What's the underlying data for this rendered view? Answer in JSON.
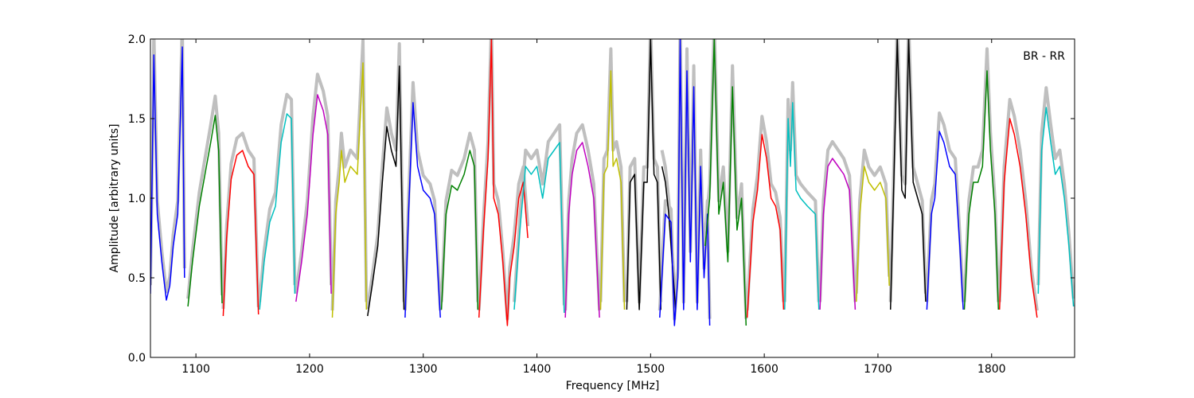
{
  "chart_data": {
    "type": "line",
    "title": "",
    "xlabel": "Frequency [MHz]",
    "ylabel": "Amplitude [arbitrary units]",
    "annotation": "BR - RR",
    "annotation_position": "top-right",
    "xlim": [
      1060,
      1873
    ],
    "ylim": [
      0.0,
      2.0
    ],
    "xticks": [
      1100,
      1200,
      1300,
      1400,
      1500,
      1600,
      1700,
      1800
    ],
    "yticks": [
      0.0,
      0.5,
      1.0,
      1.5,
      2.0
    ],
    "xtick_labels": [
      "1100",
      "1200",
      "1300",
      "1400",
      "1500",
      "1600",
      "1700",
      "1800"
    ],
    "ytick_labels": [
      "0.0",
      "0.5",
      "1.0",
      "1.5",
      "2.0"
    ],
    "grid": false,
    "background_series_color": "#bfbfbf",
    "series": [
      {
        "color": "#0000ff",
        "x": [
          1060,
          1063,
          1066,
          1070,
          1074,
          1077,
          1080,
          1084,
          1088,
          1090
        ],
        "y": [
          0.4,
          1.9,
          0.9,
          0.6,
          0.36,
          0.45,
          0.7,
          0.9,
          1.95,
          0.5
        ]
      },
      {
        "color": "#008000",
        "x": [
          1093,
          1097,
          1103,
          1108,
          1113,
          1117,
          1120,
          1123
        ],
        "y": [
          0.32,
          0.6,
          0.95,
          1.15,
          1.35,
          1.52,
          1.3,
          0.34
        ]
      },
      {
        "color": "#ff0000",
        "x": [
          1124,
          1127,
          1131,
          1136,
          1141,
          1146,
          1151,
          1155
        ],
        "y": [
          0.26,
          0.75,
          1.12,
          1.27,
          1.3,
          1.2,
          1.15,
          0.27
        ]
      },
      {
        "color": "#00bfbf",
        "x": [
          1156,
          1160,
          1165,
          1170,
          1175,
          1180,
          1184,
          1187
        ],
        "y": [
          0.3,
          0.6,
          0.85,
          0.95,
          1.35,
          1.53,
          1.5,
          0.4
        ]
      },
      {
        "color": "#bf00bf",
        "x": [
          1188,
          1193,
          1198,
          1203,
          1207,
          1212,
          1216,
          1219
        ],
        "y": [
          0.35,
          0.6,
          0.9,
          1.4,
          1.65,
          1.55,
          1.4,
          0.4
        ]
      },
      {
        "color": "#bfbf00",
        "x": [
          1220,
          1223,
          1226,
          1228,
          1231,
          1236,
          1242,
          1247,
          1250
        ],
        "y": [
          0.25,
          0.9,
          1.1,
          1.3,
          1.1,
          1.2,
          1.15,
          1.85,
          0.3
        ]
      },
      {
        "color": "#000000",
        "x": [
          1251,
          1255,
          1260,
          1264,
          1268,
          1272,
          1276,
          1279,
          1283
        ],
        "y": [
          0.26,
          0.45,
          0.7,
          1.1,
          1.45,
          1.3,
          1.2,
          1.83,
          0.3
        ]
      },
      {
        "color": "#0000ff",
        "x": [
          1284,
          1287,
          1291,
          1295,
          1300,
          1306,
          1310,
          1315
        ],
        "y": [
          0.25,
          0.9,
          1.6,
          1.2,
          1.05,
          1.0,
          0.9,
          0.25
        ]
      },
      {
        "color": "#008000",
        "x": [
          1316,
          1320,
          1325,
          1330,
          1336,
          1341,
          1345,
          1348
        ],
        "y": [
          0.3,
          0.9,
          1.08,
          1.05,
          1.15,
          1.3,
          1.2,
          0.3
        ]
      },
      {
        "color": "#ff0000",
        "x": [
          1349,
          1353,
          1357,
          1360,
          1362,
          1366,
          1370,
          1374,
          1376,
          1380,
          1384,
          1388,
          1392
        ],
        "y": [
          0.25,
          0.8,
          1.25,
          2.0,
          1.0,
          0.9,
          0.6,
          0.2,
          0.5,
          0.7,
          1.0,
          1.1,
          0.75
        ]
      },
      {
        "color": "#00bfbf",
        "x": [
          1380,
          1385,
          1390,
          1395,
          1400,
          1405,
          1410,
          1415,
          1420,
          1424
        ],
        "y": [
          0.3,
          0.8,
          1.2,
          1.15,
          1.2,
          1.0,
          1.25,
          1.3,
          1.35,
          0.28
        ]
      },
      {
        "color": "#bf00bf",
        "x": [
          1425,
          1428,
          1431,
          1435,
          1440,
          1445,
          1450,
          1455
        ],
        "y": [
          0.25,
          0.9,
          1.15,
          1.3,
          1.35,
          1.2,
          1.0,
          0.25
        ]
      },
      {
        "color": "#bfbf00",
        "x": [
          1456,
          1459,
          1462,
          1465,
          1467,
          1470,
          1474,
          1477
        ],
        "y": [
          0.3,
          1.15,
          1.2,
          1.8,
          1.2,
          1.25,
          1.1,
          0.3
        ]
      },
      {
        "color": "#000000",
        "x": [
          1479,
          1482,
          1486,
          1490,
          1494,
          1497,
          1500,
          1503,
          1506,
          1509
        ],
        "y": [
          0.3,
          1.1,
          1.15,
          0.3,
          1.1,
          1.1,
          2.0,
          1.15,
          1.1,
          0.3
        ]
      },
      {
        "color": "#000000",
        "x": [
          1510,
          1513,
          1516,
          1519,
          1522
        ],
        "y": [
          1.2,
          1.1,
          0.9,
          0.6,
          0.3
        ]
      },
      {
        "color": "#0000ff",
        "x": [
          1508,
          1513,
          1518,
          1521,
          1524,
          1526,
          1529,
          1532,
          1535,
          1538,
          1541,
          1544,
          1547,
          1550,
          1552
        ],
        "y": [
          0.25,
          0.9,
          0.85,
          0.2,
          0.5,
          2.0,
          0.3,
          1.8,
          0.6,
          1.7,
          0.3,
          1.2,
          0.5,
          0.9,
          0.2
        ]
      },
      {
        "color": "#008000",
        "x": [
          1548,
          1552,
          1556,
          1560,
          1564,
          1568,
          1572,
          1576,
          1580,
          1584
        ],
        "y": [
          0.7,
          1.0,
          2.0,
          0.9,
          1.1,
          0.6,
          1.7,
          0.8,
          1.0,
          0.2
        ]
      },
      {
        "color": "#ff0000",
        "x": [
          1585,
          1590,
          1594,
          1598,
          1602,
          1606,
          1610,
          1614,
          1617
        ],
        "y": [
          0.25,
          0.85,
          1.05,
          1.4,
          1.25,
          1.0,
          0.95,
          0.8,
          0.3
        ]
      },
      {
        "color": "#00bfbf",
        "x": [
          1618,
          1621,
          1623,
          1625,
          1628,
          1632,
          1638,
          1645,
          1648
        ],
        "y": [
          0.3,
          1.5,
          1.2,
          1.6,
          1.05,
          1.0,
          0.95,
          0.9,
          0.3
        ]
      },
      {
        "color": "#bf00bf",
        "x": [
          1649,
          1652,
          1656,
          1660,
          1665,
          1670,
          1675,
          1680
        ],
        "y": [
          0.3,
          0.9,
          1.2,
          1.25,
          1.2,
          1.15,
          1.05,
          0.3
        ]
      },
      {
        "color": "#bfbf00",
        "x": [
          1681,
          1684,
          1688,
          1692,
          1697,
          1702,
          1707,
          1710
        ],
        "y": [
          0.35,
          0.9,
          1.2,
          1.1,
          1.05,
          1.1,
          1.0,
          0.45
        ]
      },
      {
        "color": "#000000",
        "x": [
          1711,
          1714,
          1717,
          1721,
          1724,
          1727,
          1731,
          1735,
          1739,
          1742
        ],
        "y": [
          0.3,
          1.1,
          2.0,
          1.05,
          1.0,
          2.0,
          1.1,
          1.0,
          0.9,
          0.35
        ]
      },
      {
        "color": "#0000ff",
        "x": [
          1743,
          1747,
          1750,
          1754,
          1758,
          1763,
          1768,
          1772,
          1775
        ],
        "y": [
          0.3,
          0.9,
          1.0,
          1.42,
          1.35,
          1.2,
          1.15,
          0.7,
          0.3
        ]
      },
      {
        "color": "#008000",
        "x": [
          1776,
          1780,
          1784,
          1788,
          1792,
          1796,
          1799,
          1803,
          1806
        ],
        "y": [
          0.3,
          0.9,
          1.1,
          1.1,
          1.2,
          1.8,
          1.3,
          0.9,
          0.3
        ]
      },
      {
        "color": "#ff0000",
        "x": [
          1807,
          1811,
          1816,
          1820,
          1825,
          1830,
          1835,
          1840
        ],
        "y": [
          0.3,
          1.1,
          1.5,
          1.4,
          1.2,
          0.9,
          0.5,
          0.25
        ]
      },
      {
        "color": "#00bfbf",
        "x": [
          1841,
          1844,
          1848,
          1852,
          1856,
          1860,
          1864,
          1868,
          1872
        ],
        "y": [
          0.4,
          1.3,
          1.57,
          1.35,
          1.15,
          1.2,
          1.0,
          0.7,
          0.32
        ]
      }
    ]
  }
}
